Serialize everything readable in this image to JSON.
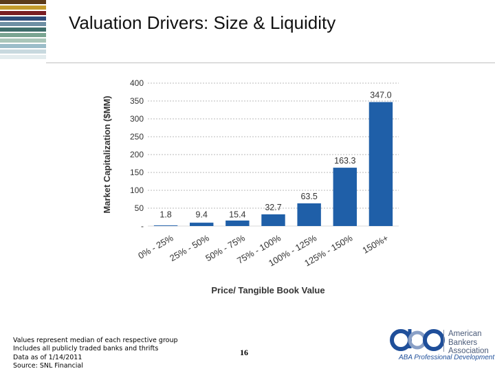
{
  "slide": {
    "title": "Valuation Drivers: Size & Liquidity",
    "page_number": "16",
    "footnotes": [
      "Values represent median of each respective group",
      "Includes all publicly traded banks and thrifts",
      "Data as of 1/14/2011",
      "Source: SNL Financial"
    ],
    "logo": {
      "lines": [
        "American",
        "Bankers",
        "Association"
      ],
      "tagline": "ABA Professional Development"
    },
    "stripe_colors": [
      "#5d3b1a",
      "#c49a2c",
      "#7a1d24",
      "#2e4a7a",
      "#6e8fa4",
      "#3f6e6b",
      "#7aa592",
      "#a9c6b9",
      "#9bbdc9",
      "#c8d9df",
      "#e3ecee"
    ]
  },
  "chart_data": {
    "type": "bar",
    "title": "",
    "xlabel": "Price/ Tangible Book Value",
    "ylabel": "Market Capitalization ($MM)",
    "categories": [
      "0% - 25%",
      "25% - 50%",
      "50% - 75%",
      "75% - 100%",
      "100% - 125%",
      "125% - 150%",
      "150%+"
    ],
    "values": [
      1.8,
      9.4,
      15.4,
      32.7,
      63.5,
      163.3,
      347.0
    ],
    "value_labels": [
      "1.8",
      "9.4",
      "15.4",
      "32.7",
      "63.5",
      "163.3",
      "347.0"
    ],
    "ylim": [
      0,
      400
    ],
    "yticks": [
      0,
      50,
      100,
      150,
      200,
      250,
      300,
      350,
      400
    ],
    "ytick_labels": [
      "-",
      "50",
      "100",
      "150",
      "200",
      "250",
      "300",
      "350",
      "400"
    ],
    "grid": true,
    "bar_color": "#1f5fa8"
  }
}
